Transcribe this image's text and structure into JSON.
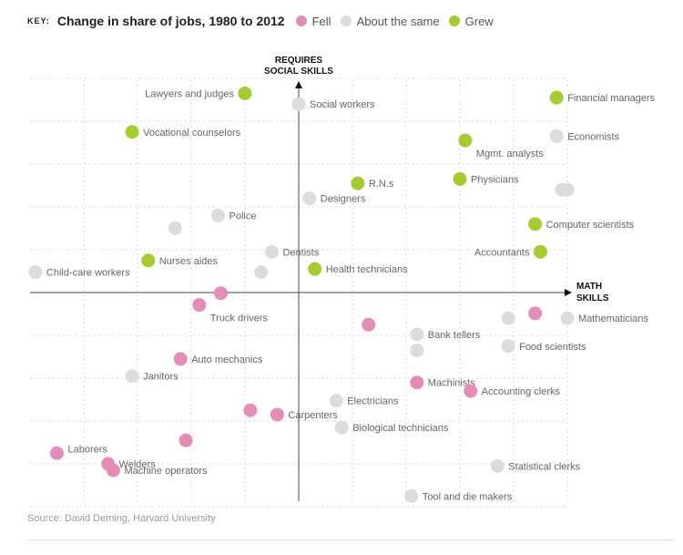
{
  "key": {
    "label": "KEY:",
    "title": "Change in share of jobs, 1980 to 2012",
    "items": [
      {
        "category": "fell",
        "label": "Fell",
        "color": "#e68cb8"
      },
      {
        "category": "same",
        "label": "About the same",
        "color": "#dcdcdc"
      },
      {
        "category": "grew",
        "label": "Grew",
        "color": "#a4cc2e"
      }
    ]
  },
  "axes": {
    "y_title": [
      "REQUIRES",
      "SOCIAL SKILLS"
    ],
    "x_title": [
      "MATH",
      "SKILLS"
    ]
  },
  "source": "Source: David Deming, Harvard University",
  "chart_data": {
    "type": "scatter",
    "title": "Change in share of jobs, 1980 to 2012",
    "xlabel": "MATH SKILLS",
    "ylabel": "REQUIRES SOCIAL SKILLS",
    "xlim": [
      -10,
      10
    ],
    "ylim": [
      -10,
      10
    ],
    "grid": true,
    "legend": "top",
    "series": [
      {
        "name": "Fell",
        "color": "#e68cb8",
        "points": [
          {
            "label": "",
            "x": -2.9,
            "y": -0.03
          },
          {
            "label": "Truck drivers",
            "x": -3.7,
            "y": -0.58
          },
          {
            "label": "",
            "x": 2.6,
            "y": -1.5
          },
          {
            "label": "",
            "x": 8.8,
            "y": -0.97
          },
          {
            "label": "Auto mechanics",
            "x": -4.4,
            "y": -3.1
          },
          {
            "label": "Machinists",
            "x": 4.4,
            "y": -4.2
          },
          {
            "label": "Accounting clerks",
            "x": 6.4,
            "y": -4.6
          },
          {
            "label": "",
            "x": -1.8,
            "y": -5.5
          },
          {
            "label": "Carpenters",
            "x": -0.8,
            "y": -5.7
          },
          {
            "label": "",
            "x": -4.2,
            "y": -6.9
          },
          {
            "label": "Laborers",
            "x": -9.0,
            "y": -7.5
          },
          {
            "label": "Welders",
            "x": -7.1,
            "y": -8.0
          },
          {
            "label": "Machine operators",
            "x": -6.9,
            "y": -8.3
          }
        ]
      },
      {
        "name": "About the same",
        "color": "#dcdcdc",
        "points": [
          {
            "label": "Social workers",
            "x": 0.0,
            "y": 8.8
          },
          {
            "label": "Economists",
            "x": 9.6,
            "y": 7.3
          },
          {
            "label": "",
            "x": 10.0,
            "y": 4.8
          },
          {
            "label": "",
            "x": 9.8,
            "y": 4.8
          },
          {
            "label": "Designers",
            "x": 0.4,
            "y": 4.4
          },
          {
            "label": "Police",
            "x": -3.0,
            "y": 3.6
          },
          {
            "label": "",
            "x": -4.6,
            "y": 3.0
          },
          {
            "label": "Dentists",
            "x": -1.0,
            "y": 1.9
          },
          {
            "label": "",
            "x": -1.4,
            "y": 0.95
          },
          {
            "label": "Child-care workers",
            "x": -9.8,
            "y": 0.95
          },
          {
            "label": "",
            "x": 7.8,
            "y": -1.2
          },
          {
            "label": "Mathematicians",
            "x": 10.0,
            "y": -1.2
          },
          {
            "label": "Bank tellers",
            "x": 4.4,
            "y": -1.95
          },
          {
            "label": "",
            "x": 4.4,
            "y": -2.7
          },
          {
            "label": "Food scientists",
            "x": 7.8,
            "y": -2.5
          },
          {
            "label": "Janitors",
            "x": -6.2,
            "y": -3.9
          },
          {
            "label": "Electricians",
            "x": 1.4,
            "y": -5.05
          },
          {
            "label": "Biological technicians",
            "x": 1.6,
            "y": -6.3
          },
          {
            "label": "Statistical clerks",
            "x": 7.4,
            "y": -8.1
          },
          {
            "label": "Tool and die makers",
            "x": 4.2,
            "y": -9.5
          }
        ]
      },
      {
        "name": "Grew",
        "color": "#a4cc2e",
        "points": [
          {
            "label": "Lawyers and judges",
            "x": -2.0,
            "y": 9.3
          },
          {
            "label": "Financial managers",
            "x": 9.6,
            "y": 9.1
          },
          {
            "label": "Vocational counselors",
            "x": -6.2,
            "y": 7.5
          },
          {
            "label": "Mgmt. analysts",
            "x": 6.2,
            "y": 7.1
          },
          {
            "label": "R.N.s",
            "x": 2.2,
            "y": 5.1
          },
          {
            "label": "Physicians",
            "x": 6.0,
            "y": 5.3
          },
          {
            "label": "Computer scientists",
            "x": 8.8,
            "y": 3.2
          },
          {
            "label": "Accountants",
            "x": 9.0,
            "y": 1.9
          },
          {
            "label": "Nurses aides",
            "x": -5.6,
            "y": 1.5
          },
          {
            "label": "Health technicians",
            "x": 0.6,
            "y": 1.1
          }
        ]
      }
    ]
  }
}
